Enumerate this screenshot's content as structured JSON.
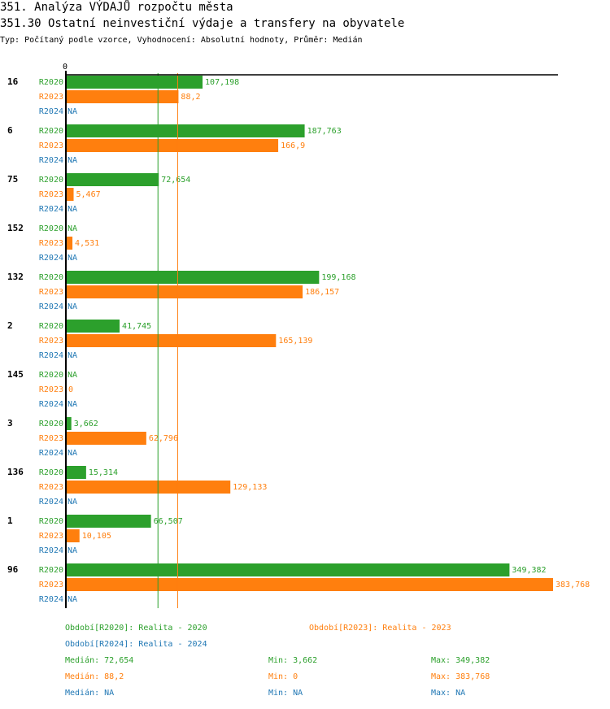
{
  "header": {
    "title": "351. Analýza VÝDAJŮ rozpočtu města",
    "subtitle": "351.30 Ostatní neinvestiční výdaje a transfery na obyvatele",
    "info": "Typ: Počítaný podle vzorce, Vyhodnocení: Absolutní hodnoty, Průměr: Medián"
  },
  "colors": {
    "R2020": "#2ca02c",
    "R2023": "#ff7f0e",
    "R2024": "#1f77b4",
    "axis": "#000000"
  },
  "chart_data": {
    "type": "bar",
    "orientation": "horizontal",
    "title": "351.30 Ostatní neinvestiční výdaje a transfery na obyvatele",
    "xlabel": "",
    "ylabel": "",
    "x_tick_labels": [
      "0"
    ],
    "xlim": [
      0,
      383.768
    ],
    "categories": [
      "16",
      "6",
      "75",
      "152",
      "132",
      "2",
      "145",
      "3",
      "136",
      "1",
      "96"
    ],
    "series": [
      {
        "name": "R2020",
        "values": [
          107.198,
          187.763,
          72.654,
          null,
          199.168,
          41.745,
          null,
          3.662,
          15.314,
          66.507,
          349.382
        ],
        "labels": [
          "107,198",
          "187,763",
          "72,654",
          "NA",
          "199,168",
          "41,745",
          "NA",
          "3,662",
          "15,314",
          "66,507",
          "349,382"
        ]
      },
      {
        "name": "R2023",
        "values": [
          88.2,
          166.9,
          5.467,
          4.531,
          186.157,
          165.139,
          0,
          62.796,
          129.133,
          10.105,
          383.768
        ],
        "labels": [
          "88,2",
          "166,9",
          "5,467",
          "4,531",
          "186,157",
          "165,139",
          "0",
          "62,796",
          "129,133",
          "10,105",
          "383,768"
        ]
      },
      {
        "name": "R2024",
        "values": [
          null,
          null,
          null,
          null,
          null,
          null,
          null,
          null,
          null,
          null,
          null
        ],
        "labels": [
          "NA",
          "NA",
          "NA",
          "NA",
          "NA",
          "NA",
          "NA",
          "NA",
          "NA",
          "NA",
          "NA"
        ]
      }
    ],
    "median_lines": [
      {
        "series": "R2020",
        "value": 72.654
      },
      {
        "series": "R2023",
        "value": 88.2
      }
    ]
  },
  "legend": {
    "periods": [
      {
        "series": "R2020",
        "text": "Období[R2020]: Realita - 2020"
      },
      {
        "series": "R2023",
        "text": "Období[R2023]: Realita - 2023"
      },
      {
        "series": "R2024",
        "text": "Období[R2024]: Realita - 2024"
      }
    ],
    "stats": [
      {
        "series": "R2020",
        "median": "Medián: 72,654",
        "min": "Min: 3,662",
        "max": "Max: 349,382"
      },
      {
        "series": "R2023",
        "median": "Medián: 88,2",
        "min": "Min: 0",
        "max": "Max: 383,768"
      },
      {
        "series": "R2024",
        "median": "Medián: NA",
        "min": "Min: NA",
        "max": "Max: NA"
      }
    ]
  }
}
